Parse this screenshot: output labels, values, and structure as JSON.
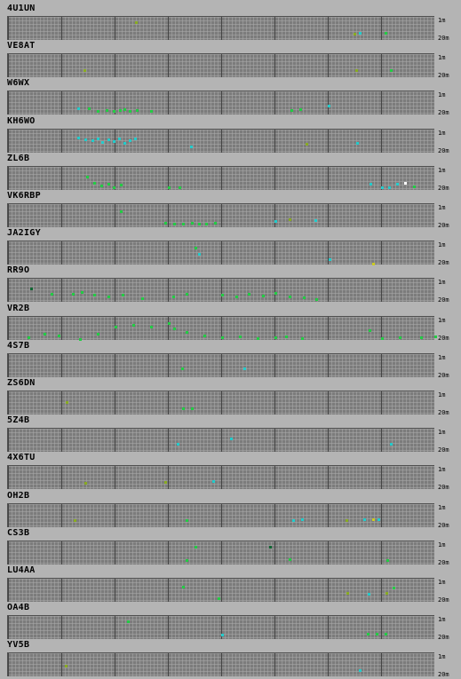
{
  "band_labels": {
    "top": "1m",
    "bottom": "20m"
  },
  "colors": {
    "green": "#22cc44",
    "cyan": "#22cccc",
    "yellow": "#cccc22",
    "olive": "#88aa22",
    "white": "#ffffff",
    "dark": "#116633"
  },
  "stations": [
    {
      "call": "4U1UN",
      "spots": [
        [
          143,
          5,
          "olive"
        ],
        [
          389,
          18,
          "olive"
        ],
        [
          395,
          17,
          "cyan"
        ],
        [
          424,
          17,
          "green"
        ]
      ]
    },
    {
      "call": "VE8AT",
      "spots": [
        [
          85,
          17,
          "olive"
        ],
        [
          391,
          17,
          "olive"
        ],
        [
          430,
          17,
          "green"
        ]
      ]
    },
    {
      "call": "W6WX",
      "spots": [
        [
          78,
          18,
          "cyan"
        ],
        [
          90,
          18,
          "green"
        ],
        [
          100,
          21,
          "green"
        ],
        [
          110,
          20,
          "green"
        ],
        [
          118,
          21,
          "green"
        ],
        [
          125,
          20,
          "green"
        ],
        [
          130,
          19,
          "green"
        ],
        [
          136,
          21,
          "green"
        ],
        [
          144,
          20,
          "green"
        ],
        [
          160,
          21,
          "green"
        ],
        [
          318,
          20,
          "green"
        ],
        [
          328,
          19,
          "green"
        ],
        [
          360,
          15,
          "cyan"
        ]
      ]
    },
    {
      "call": "KH6WO",
      "spots": [
        [
          78,
          8,
          "cyan"
        ],
        [
          86,
          10,
          "cyan"
        ],
        [
          94,
          11,
          "cyan"
        ],
        [
          100,
          9,
          "cyan"
        ],
        [
          105,
          13,
          "cyan"
        ],
        [
          112,
          10,
          "cyan"
        ],
        [
          118,
          12,
          "cyan"
        ],
        [
          124,
          9,
          "cyan"
        ],
        [
          130,
          14,
          "cyan"
        ],
        [
          136,
          11,
          "cyan"
        ],
        [
          142,
          9,
          "cyan"
        ],
        [
          205,
          18,
          "cyan"
        ],
        [
          335,
          15,
          "olive"
        ],
        [
          392,
          14,
          "cyan"
        ]
      ]
    },
    {
      "call": "ZL6B",
      "spots": [
        [
          88,
          10,
          "green"
        ],
        [
          96,
          17,
          "green"
        ],
        [
          104,
          20,
          "green"
        ],
        [
          112,
          18,
          "green"
        ],
        [
          118,
          22,
          "green"
        ],
        [
          126,
          19,
          "green"
        ],
        [
          180,
          22,
          "green"
        ],
        [
          192,
          22,
          "green"
        ],
        [
          407,
          18,
          "cyan"
        ],
        [
          420,
          22,
          "cyan"
        ],
        [
          428,
          22,
          "cyan"
        ],
        [
          437,
          18,
          "cyan"
        ],
        [
          446,
          17,
          "white"
        ],
        [
          456,
          21,
          "green"
        ]
      ]
    },
    {
      "call": "VK6RBP",
      "spots": [
        [
          126,
          7,
          "green"
        ],
        [
          176,
          20,
          "green"
        ],
        [
          186,
          21,
          "green"
        ],
        [
          196,
          21,
          "green"
        ],
        [
          206,
          20,
          "green"
        ],
        [
          214,
          21,
          "green"
        ],
        [
          222,
          21,
          "green"
        ],
        [
          232,
          20,
          "green"
        ],
        [
          300,
          18,
          "cyan"
        ],
        [
          316,
          16,
          "olive"
        ],
        [
          345,
          17,
          "cyan"
        ]
      ]
    },
    {
      "call": "JA2IGY",
      "spots": [
        [
          210,
          6,
          "green"
        ],
        [
          214,
          13,
          "cyan"
        ],
        [
          361,
          19,
          "cyan"
        ],
        [
          410,
          24,
          "yellow"
        ]
      ]
    },
    {
      "call": "RR9O",
      "spots": [
        [
          25,
          10,
          "dark"
        ],
        [
          48,
          16,
          "green"
        ],
        [
          72,
          16,
          "green"
        ],
        [
          82,
          14,
          "green"
        ],
        [
          96,
          17,
          "green"
        ],
        [
          112,
          19,
          "green"
        ],
        [
          128,
          17,
          "green"
        ],
        [
          150,
          21,
          "green"
        ],
        [
          185,
          19,
          "green"
        ],
        [
          200,
          16,
          "green"
        ],
        [
          240,
          17,
          "green"
        ],
        [
          256,
          19,
          "green"
        ],
        [
          270,
          16,
          "green"
        ],
        [
          286,
          18,
          "green"
        ],
        [
          300,
          15,
          "green"
        ],
        [
          316,
          19,
          "green"
        ],
        [
          332,
          20,
          "green"
        ],
        [
          346,
          22,
          "green"
        ]
      ]
    },
    {
      "call": "VR2B",
      "spots": [
        [
          22,
          22,
          "green"
        ],
        [
          40,
          18,
          "green"
        ],
        [
          56,
          20,
          "green"
        ],
        [
          80,
          24,
          "green"
        ],
        [
          100,
          18,
          "green"
        ],
        [
          120,
          10,
          "green"
        ],
        [
          140,
          8,
          "green"
        ],
        [
          160,
          10,
          "green"
        ],
        [
          180,
          6,
          "green"
        ],
        [
          186,
          12,
          "green"
        ],
        [
          200,
          16,
          "green"
        ],
        [
          220,
          20,
          "green"
        ],
        [
          240,
          22,
          "green"
        ],
        [
          260,
          21,
          "green"
        ],
        [
          280,
          23,
          "green"
        ],
        [
          300,
          22,
          "green"
        ],
        [
          312,
          21,
          "green"
        ],
        [
          330,
          23,
          "green"
        ],
        [
          406,
          14,
          "green"
        ],
        [
          420,
          23,
          "green"
        ],
        [
          440,
          22,
          "green"
        ],
        [
          464,
          22,
          "green"
        ],
        [
          480,
          21,
          "green"
        ]
      ]
    },
    {
      "call": "4S7B",
      "spots": [
        [
          195,
          15,
          "green"
        ],
        [
          265,
          15,
          "cyan"
        ]
      ]
    },
    {
      "call": "ZS6DN",
      "spots": [
        [
          65,
          11,
          "olive"
        ],
        [
          196,
          18,
          "green"
        ],
        [
          206,
          18,
          "green"
        ]
      ]
    },
    {
      "call": "5Z4B",
      "spots": [
        [
          190,
          16,
          "cyan"
        ],
        [
          250,
          10,
          "cyan"
        ],
        [
          430,
          16,
          "cyan"
        ]
      ]
    },
    {
      "call": "4X6TU",
      "spots": [
        [
          86,
          18,
          "olive"
        ],
        [
          176,
          17,
          "olive"
        ],
        [
          230,
          16,
          "cyan"
        ]
      ]
    },
    {
      "call": "OH2B",
      "spots": [
        [
          74,
          17,
          "olive"
        ],
        [
          200,
          17,
          "green"
        ],
        [
          320,
          17,
          "cyan"
        ],
        [
          330,
          16,
          "cyan"
        ],
        [
          380,
          17,
          "olive"
        ],
        [
          400,
          16,
          "cyan"
        ],
        [
          410,
          16,
          "yellow"
        ],
        [
          416,
          16,
          "cyan"
        ]
      ]
    },
    {
      "call": "CS3B",
      "spots": [
        [
          210,
          5,
          "green"
        ],
        [
          200,
          20,
          "green"
        ],
        [
          294,
          5,
          "dark"
        ],
        [
          316,
          19,
          "green"
        ],
        [
          426,
          20,
          "green"
        ]
      ]
    },
    {
      "call": "LU4AA",
      "spots": [
        [
          196,
          8,
          "green"
        ],
        [
          236,
          21,
          "green"
        ],
        [
          381,
          15,
          "olive"
        ],
        [
          405,
          16,
          "cyan"
        ],
        [
          425,
          15,
          "olive"
        ],
        [
          433,
          9,
          "green"
        ]
      ]
    },
    {
      "call": "OA4B",
      "spots": [
        [
          134,
          5,
          "green"
        ],
        [
          240,
          20,
          "cyan"
        ],
        [
          404,
          19,
          "green"
        ],
        [
          414,
          19,
          "green"
        ],
        [
          424,
          19,
          "green"
        ]
      ]
    },
    {
      "call": "YV5B",
      "spots": [
        [
          64,
          13,
          "olive"
        ],
        [
          395,
          18,
          "cyan"
        ]
      ]
    }
  ]
}
